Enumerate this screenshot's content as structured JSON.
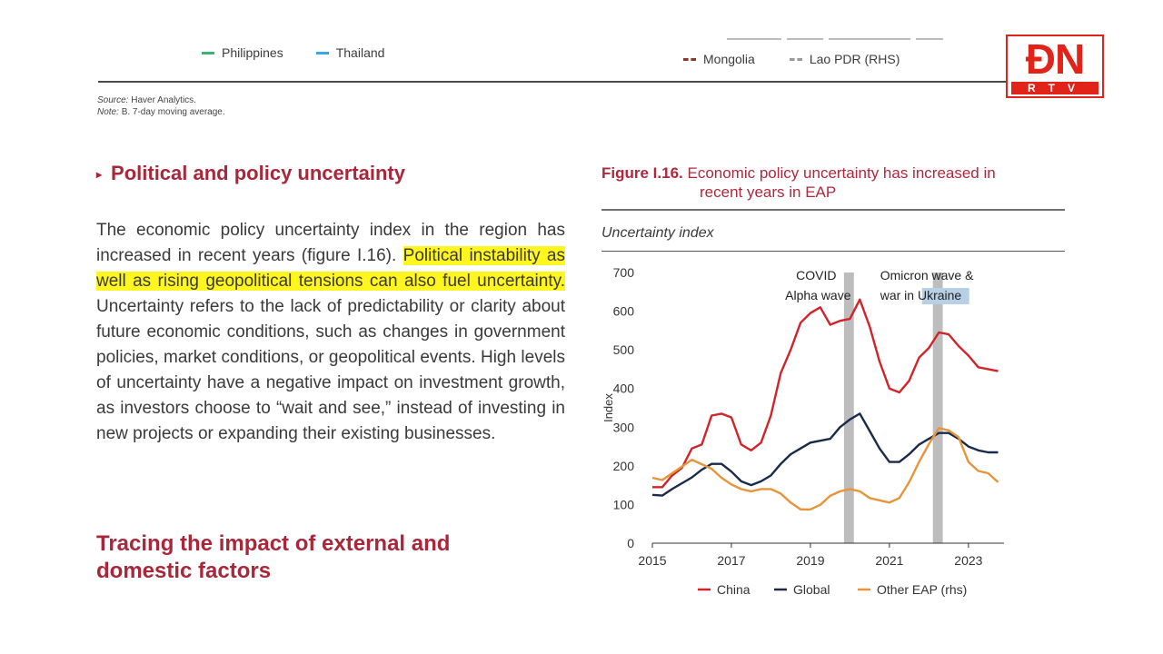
{
  "top_legend": {
    "left_items": [
      {
        "label": "Philippines",
        "color": "#3cb371"
      },
      {
        "label": "Thailand",
        "color": "#3aa7e0"
      }
    ],
    "right_items": [
      {
        "label": "Mongolia",
        "color": "#8b3a2e"
      },
      {
        "label": "Lao PDR (RHS)",
        "color": "#9a9a9a"
      }
    ]
  },
  "source_note": {
    "source_label": "Source:",
    "source_text": "Haver Analytics.",
    "note_label": "Note:",
    "note_text": "B. 7-day moving average."
  },
  "logo": {
    "main": "ĐN",
    "sub": "RTV",
    "color": "#e2231a"
  },
  "left": {
    "heading": "Political and policy uncertainty",
    "paragraph_before": "The economic policy uncertainty index in the region has increased in recent years (figure I.16). ",
    "paragraph_highlight": "Political instability as well as rising geopolitical tensions can also fuel uncertainty.",
    "paragraph_after": " Uncertainty refers to the lack of predictability or clarity about future economic conditions, such as changes in government policies, market conditions, or geopolitical events. High levels of uncertainty have a negative impact on investment growth, as investors choose to “wait and see,” instead of investing in new projects or expanding their existing businesses.",
    "trace_heading": "Tracing the impact of external and domestic factors"
  },
  "figure": {
    "number": "Figure I.16.",
    "title_line1": "Economic policy uncertainty has increased in",
    "title_line2": "recent years in EAP",
    "subtitle": "Uncertainty index"
  },
  "chart_data": {
    "type": "line",
    "xlim": [
      2015,
      2023.9
    ],
    "x_ticks": [
      "2015",
      "2017",
      "2019",
      "2021",
      "2023"
    ],
    "x_tick_values": [
      2015,
      2017,
      2019,
      2021,
      2023
    ],
    "ylim_left": [
      0,
      700
    ],
    "ylim_right": [
      0,
      0.6
    ],
    "y_ticks_left": [
      "0",
      "100",
      "200",
      "300",
      "400",
      "500",
      "600",
      "700"
    ],
    "y_ticks_right": [
      "0",
      "0.1",
      "0.2",
      "0.3",
      "0.4",
      "0.5",
      "0.6"
    ],
    "ylabel_left": "Index",
    "ylabel_right": "Index",
    "grid": false,
    "legend_position": "bottom",
    "annotations": [
      {
        "lines": [
          "COVID",
          "Alpha wave"
        ],
        "band": [
          2019.85,
          2020.1
        ]
      },
      {
        "lines": [
          "Omicron wave &",
          "war in Ukraine"
        ],
        "band": [
          2022.1,
          2022.35
        ],
        "highlight_word": "Ukraine"
      }
    ],
    "band_color": "#bdbdbd",
    "series": [
      {
        "name": "China",
        "color": "#d2232a",
        "axis": "left",
        "x": [
          2015,
          2015.25,
          2015.5,
          2015.75,
          2016,
          2016.25,
          2016.5,
          2016.75,
          2017,
          2017.25,
          2017.5,
          2017.75,
          2018,
          2018.25,
          2018.5,
          2018.75,
          2019,
          2019.25,
          2019.5,
          2019.75,
          2020,
          2020.25,
          2020.5,
          2020.75,
          2021,
          2021.25,
          2021.5,
          2021.75,
          2022,
          2022.25,
          2022.5,
          2022.75,
          2023,
          2023.25,
          2023.5,
          2023.75
        ],
        "y": [
          145,
          145,
          175,
          195,
          245,
          255,
          330,
          335,
          325,
          255,
          240,
          260,
          330,
          440,
          500,
          570,
          595,
          610,
          565,
          575,
          580,
          630,
          560,
          470,
          400,
          390,
          420,
          480,
          505,
          545,
          540,
          510,
          485,
          455,
          450,
          445
        ]
      },
      {
        "name": "Global",
        "color": "#1b2a4a",
        "axis": "left",
        "x": [
          2015,
          2015.25,
          2015.5,
          2015.75,
          2016,
          2016.25,
          2016.5,
          2016.75,
          2017,
          2017.25,
          2017.5,
          2017.75,
          2018,
          2018.25,
          2018.5,
          2018.75,
          2019,
          2019.25,
          2019.5,
          2019.75,
          2020,
          2020.25,
          2020.5,
          2020.75,
          2021,
          2021.25,
          2021.5,
          2021.75,
          2022,
          2022.25,
          2022.5,
          2022.75,
          2023,
          2023.25,
          2023.5,
          2023.75
        ],
        "y": [
          125,
          123,
          140,
          155,
          170,
          190,
          205,
          205,
          185,
          160,
          150,
          160,
          175,
          205,
          230,
          245,
          260,
          265,
          270,
          300,
          320,
          335,
          290,
          245,
          210,
          210,
          230,
          255,
          270,
          285,
          285,
          270,
          250,
          240,
          235,
          235
        ]
      },
      {
        "name": "Other EAP (rhs)",
        "color": "#e8943a",
        "axis": "right",
        "x": [
          2015,
          2015.25,
          2015.5,
          2015.75,
          2016,
          2016.25,
          2016.5,
          2016.75,
          2017,
          2017.25,
          2017.5,
          2017.75,
          2018,
          2018.25,
          2018.5,
          2018.75,
          2019,
          2019.25,
          2019.5,
          2019.75,
          2020,
          2020.25,
          2020.5,
          2020.75,
          2021,
          2021.25,
          2021.5,
          2021.75,
          2022,
          2022.25,
          2022.5,
          2022.75,
          2023,
          2023.25,
          2023.5,
          2023.75
        ],
        "y": [
          0.145,
          0.14,
          0.155,
          0.17,
          0.185,
          0.175,
          0.165,
          0.145,
          0.13,
          0.12,
          0.115,
          0.12,
          0.12,
          0.11,
          0.09,
          0.075,
          0.075,
          0.085,
          0.105,
          0.115,
          0.12,
          0.115,
          0.1,
          0.095,
          0.09,
          0.1,
          0.135,
          0.18,
          0.22,
          0.255,
          0.25,
          0.235,
          0.18,
          0.16,
          0.155,
          0.135
        ]
      }
    ]
  }
}
